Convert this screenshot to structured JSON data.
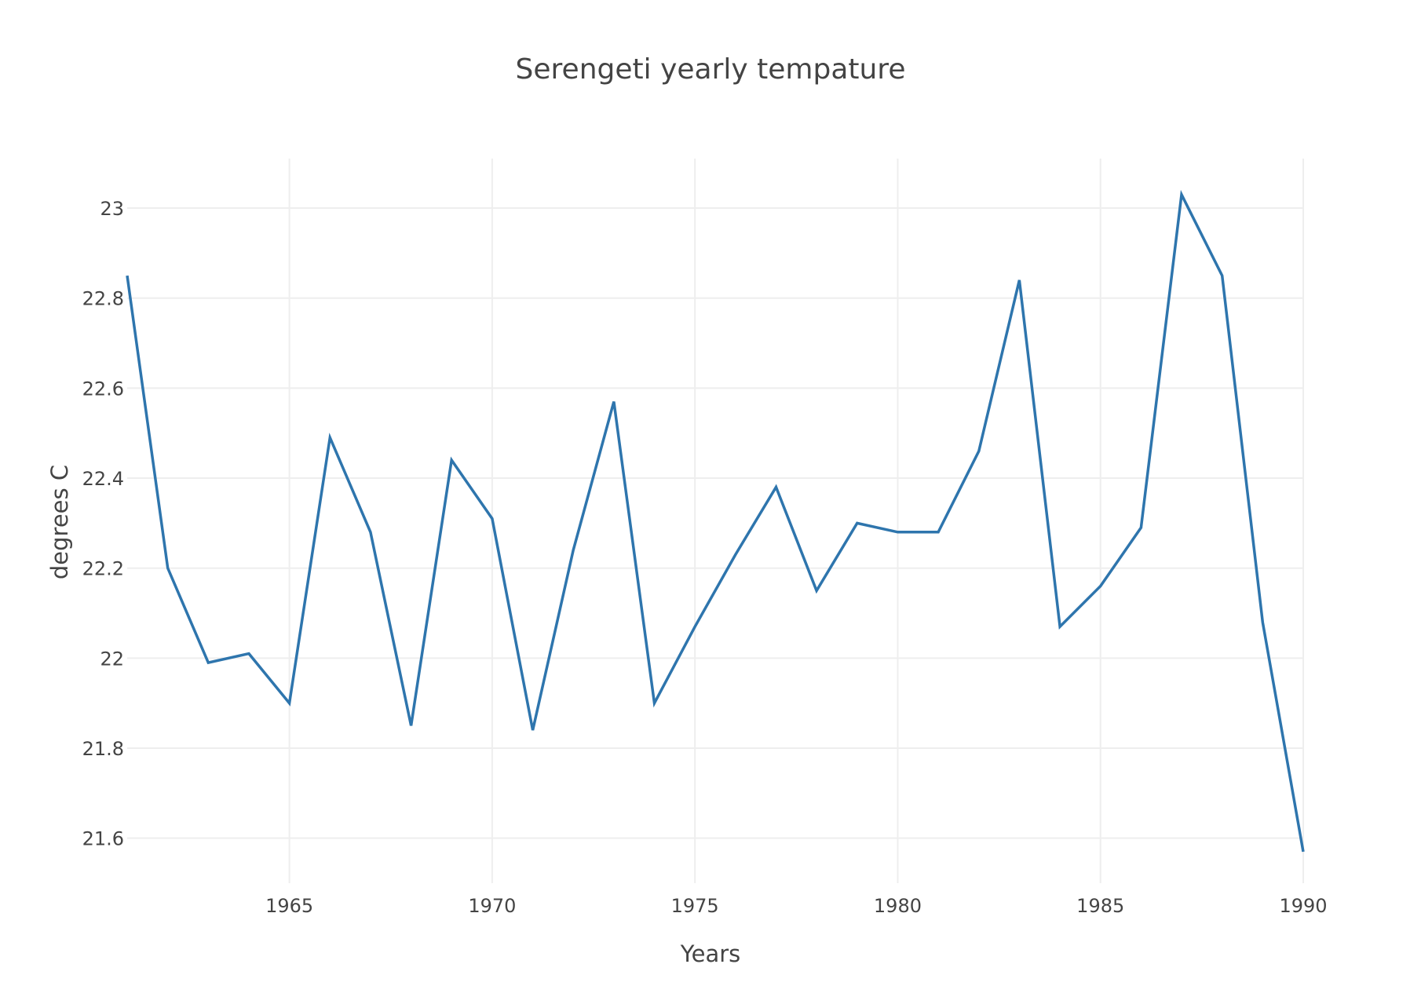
{
  "chart_data": {
    "type": "line",
    "title": "Serengeti yearly tempature",
    "xlabel": "Years",
    "ylabel": "degrees C",
    "xlim": [
      1961,
      1990
    ],
    "ylim": [
      21.5,
      23.11
    ],
    "xticks": [
      1965,
      1970,
      1975,
      1980,
      1985,
      1990
    ],
    "yticks": [
      21.6,
      21.8,
      22,
      22.2,
      22.4,
      22.6,
      22.8,
      23
    ],
    "ytick_labels": [
      "21.6",
      "21.8",
      "22",
      "22.2",
      "22.4",
      "22.6",
      "22.8",
      "23"
    ],
    "grid": true,
    "colors": {
      "line": "#2e75ad",
      "grid": "#eeeeee",
      "text": "#444444"
    },
    "series": [
      {
        "x": [
          1961,
          1962,
          1963,
          1964,
          1965,
          1966,
          1967,
          1968,
          1969,
          1970,
          1971,
          1972,
          1973,
          1974,
          1975,
          1976,
          1977,
          1978,
          1979,
          1980,
          1981,
          1982,
          1983,
          1984,
          1985,
          1986,
          1987,
          1988,
          1989,
          1990
        ],
        "values": [
          22.85,
          22.2,
          21.99,
          22.01,
          21.9,
          22.49,
          22.28,
          21.85,
          22.44,
          22.31,
          21.84,
          22.24,
          22.57,
          21.9,
          22.07,
          22.23,
          22.38,
          22.15,
          22.3,
          22.28,
          22.28,
          22.46,
          22.84,
          22.07,
          22.16,
          22.29,
          23.03,
          22.85,
          22.08,
          21.57
        ]
      }
    ]
  }
}
